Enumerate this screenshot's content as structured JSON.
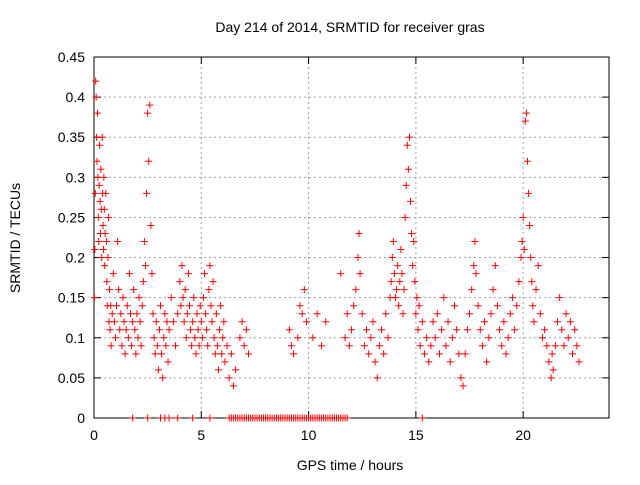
{
  "chart_data": {
    "type": "scatter",
    "title": "Day 214 of 2014, SRMTID for receiver gras",
    "xlabel": "GPS time / hours",
    "ylabel": "SRMTID / TECUs",
    "xlim": [
      0,
      24
    ],
    "ylim": [
      0,
      0.45
    ],
    "xticks": [
      0,
      5,
      10,
      15,
      20
    ],
    "yticks": [
      0,
      0.05,
      0.1,
      0.15,
      0.2,
      0.25,
      0.3,
      0.35,
      0.4,
      0.45
    ],
    "ytick_labels": [
      "0",
      "0.05",
      "0.1",
      "0.15",
      "0.2",
      "0.25",
      "0.3",
      "0.35",
      "0.4",
      "0.45"
    ],
    "grid": true,
    "marker": "+",
    "series": [
      {
        "name": "SRMTID",
        "color": "#ff0000",
        "points": [
          [
            0.02,
            0.15
          ],
          [
            0.04,
            0.21
          ],
          [
            0.06,
            0.28
          ],
          [
            0.08,
            0.42
          ],
          [
            0.1,
            0.4
          ],
          [
            0.12,
            0.35
          ],
          [
            0.14,
            0.32
          ],
          [
            0.16,
            0.38
          ],
          [
            0.18,
            0.3
          ],
          [
            0.2,
            0.25
          ],
          [
            0.22,
            0.22
          ],
          [
            0.24,
            0.29
          ],
          [
            0.26,
            0.34
          ],
          [
            0.28,
            0.27
          ],
          [
            0.3,
            0.23
          ],
          [
            0.32,
            0.31
          ],
          [
            0.34,
            0.26
          ],
          [
            0.36,
            0.2
          ],
          [
            0.38,
            0.35
          ],
          [
            0.4,
            0.28
          ],
          [
            0.42,
            0.24
          ],
          [
            0.44,
            0.21
          ],
          [
            0.46,
            0.3
          ],
          [
            0.48,
            0.26
          ],
          [
            0.5,
            0.19
          ],
          [
            0.52,
            0.23
          ],
          [
            0.55,
            0.28
          ],
          [
            0.58,
            0.22
          ],
          [
            0.6,
            0.17
          ],
          [
            0.62,
            0.14
          ],
          [
            0.65,
            0.2
          ],
          [
            0.68,
            0.25
          ],
          [
            0.7,
            0.12
          ],
          [
            0.72,
            0.16
          ],
          [
            0.75,
            0.11
          ],
          [
            0.78,
            0.14
          ],
          [
            0.8,
            0.09
          ],
          [
            0.85,
            0.13
          ],
          [
            0.9,
            0.18
          ],
          [
            0.95,
            0.12
          ],
          [
            1.0,
            0.1
          ],
          [
            1.05,
            0.14
          ],
          [
            1.1,
            0.22
          ],
          [
            1.15,
            0.16
          ],
          [
            1.2,
            0.11
          ],
          [
            1.25,
            0.13
          ],
          [
            1.3,
            0.09
          ],
          [
            1.35,
            0.15
          ],
          [
            1.4,
            0.12
          ],
          [
            1.45,
            0.08
          ],
          [
            1.5,
            0.11
          ],
          [
            1.55,
            0.14
          ],
          [
            1.6,
            0.1
          ],
          [
            1.65,
            0.18
          ],
          [
            1.7,
            0.13
          ],
          [
            1.75,
            0.09
          ],
          [
            1.8,
            0.12
          ],
          [
            1.85,
            0.16
          ],
          [
            1.9,
            0.11
          ],
          [
            1.95,
            0.08
          ],
          [
            2.0,
            0.13
          ],
          [
            2.05,
            0.1
          ],
          [
            2.1,
            0.15
          ],
          [
            2.15,
            0.12
          ],
          [
            2.2,
            0.09
          ],
          [
            2.25,
            0.14
          ],
          [
            2.3,
            0.17
          ],
          [
            2.35,
            0.22
          ],
          [
            2.4,
            0.19
          ],
          [
            2.45,
            0.28
          ],
          [
            2.5,
            0.38
          ],
          [
            2.55,
            0.32
          ],
          [
            2.6,
            0.39
          ],
          [
            2.65,
            0.24
          ],
          [
            2.7,
            0.18
          ],
          [
            2.75,
            0.13
          ],
          [
            2.8,
            0.1
          ],
          [
            2.85,
            0.08
          ],
          [
            2.9,
            0.12
          ],
          [
            2.95,
            0.09
          ],
          [
            3.0,
            0.06
          ],
          [
            3.05,
            0.11
          ],
          [
            3.1,
            0.14
          ],
          [
            3.15,
            0.08
          ],
          [
            3.2,
            0.05
          ],
          [
            3.25,
            0.1
          ],
          [
            3.3,
            0.13
          ],
          [
            3.35,
            0.09
          ],
          [
            3.4,
            0.12
          ],
          [
            3.45,
            0.07
          ],
          [
            3.5,
            0.11
          ],
          [
            3.6,
            0.15
          ],
          [
            3.7,
            0.12
          ],
          [
            3.8,
            0.09
          ],
          [
            3.9,
            0.13
          ],
          [
            4.0,
            0.17
          ],
          [
            4.05,
            0.14
          ],
          [
            4.1,
            0.19
          ],
          [
            4.15,
            0.15
          ],
          [
            4.2,
            0.12
          ],
          [
            4.25,
            0.16
          ],
          [
            4.3,
            0.1
          ],
          [
            4.35,
            0.13
          ],
          [
            4.4,
            0.18
          ],
          [
            4.45,
            0.14
          ],
          [
            4.5,
            0.11
          ],
          [
            4.55,
            0.09
          ],
          [
            4.6,
            0.12
          ],
          [
            4.65,
            0.15
          ],
          [
            4.7,
            0.1
          ],
          [
            4.75,
            0.08
          ],
          [
            4.8,
            0.13
          ],
          [
            4.85,
            0.11
          ],
          [
            4.9,
            0.09
          ],
          [
            4.95,
            0.14
          ],
          [
            5.0,
            0.12
          ],
          [
            5.05,
            0.1
          ],
          [
            5.1,
            0.15
          ],
          [
            5.15,
            0.18
          ],
          [
            5.2,
            0.13
          ],
          [
            5.25,
            0.11
          ],
          [
            5.3,
            0.09
          ],
          [
            5.35,
            0.16
          ],
          [
            5.4,
            0.19
          ],
          [
            5.45,
            0.14
          ],
          [
            5.5,
            0.12
          ],
          [
            5.55,
            0.17
          ],
          [
            5.6,
            0.1
          ],
          [
            5.65,
            0.08
          ],
          [
            5.7,
            0.13
          ],
          [
            5.75,
            0.09
          ],
          [
            5.8,
            0.06
          ],
          [
            5.85,
            0.11
          ],
          [
            5.9,
            0.14
          ],
          [
            5.95,
            0.08
          ],
          [
            6.0,
            0.1
          ],
          [
            6.05,
            0.12
          ],
          [
            6.1,
            0.07
          ],
          [
            6.2,
            0.09
          ],
          [
            6.3,
            0.05
          ],
          [
            6.4,
            0.08
          ],
          [
            6.5,
            0.04
          ],
          [
            6.6,
            0.06
          ],
          [
            6.8,
            0.1
          ],
          [
            6.9,
            0.12
          ],
          [
            7.0,
            0.09
          ],
          [
            7.1,
            0.11
          ],
          [
            7.2,
            0.08
          ],
          [
            9.1,
            0.11
          ],
          [
            9.2,
            0.09
          ],
          [
            9.3,
            0.08
          ],
          [
            9.5,
            0.1
          ],
          [
            9.6,
            0.14
          ],
          [
            9.7,
            0.13
          ],
          [
            9.8,
            0.16
          ],
          [
            9.9,
            0.12
          ],
          [
            10.2,
            0.1
          ],
          [
            10.4,
            0.13
          ],
          [
            10.6,
            0.09
          ],
          [
            10.8,
            0.12
          ],
          [
            11.5,
            0.18
          ],
          [
            11.7,
            0.1
          ],
          [
            11.8,
            0.13
          ],
          [
            11.9,
            0.09
          ],
          [
            12.0,
            0.11
          ],
          [
            12.1,
            0.14
          ],
          [
            12.2,
            0.16
          ],
          [
            12.3,
            0.2
          ],
          [
            12.35,
            0.23
          ],
          [
            12.4,
            0.18
          ],
          [
            12.5,
            0.13
          ],
          [
            12.6,
            0.09
          ],
          [
            12.7,
            0.11
          ],
          [
            12.8,
            0.08
          ],
          [
            12.9,
            0.1
          ],
          [
            13.0,
            0.12
          ],
          [
            13.1,
            0.07
          ],
          [
            13.2,
            0.05
          ],
          [
            13.3,
            0.09
          ],
          [
            13.4,
            0.11
          ],
          [
            13.5,
            0.08
          ],
          [
            13.6,
            0.13
          ],
          [
            13.7,
            0.1
          ],
          [
            13.8,
            0.15
          ],
          [
            13.85,
            0.17
          ],
          [
            13.9,
            0.2
          ],
          [
            13.95,
            0.22
          ],
          [
            14.0,
            0.18
          ],
          [
            14.05,
            0.15
          ],
          [
            14.1,
            0.16
          ],
          [
            14.15,
            0.19
          ],
          [
            14.2,
            0.14
          ],
          [
            14.25,
            0.17
          ],
          [
            14.3,
            0.21
          ],
          [
            14.35,
            0.18
          ],
          [
            14.4,
            0.13
          ],
          [
            14.45,
            0.16
          ],
          [
            14.5,
            0.25
          ],
          [
            14.55,
            0.29
          ],
          [
            14.6,
            0.34
          ],
          [
            14.65,
            0.31
          ],
          [
            14.7,
            0.35
          ],
          [
            14.75,
            0.27
          ],
          [
            14.8,
            0.23
          ],
          [
            14.85,
            0.19
          ],
          [
            14.9,
            0.22
          ],
          [
            14.95,
            0.17
          ],
          [
            15.0,
            0.13
          ],
          [
            15.05,
            0.15
          ],
          [
            15.1,
            0.11
          ],
          [
            15.15,
            0.14
          ],
          [
            15.2,
            0.09
          ],
          [
            15.3,
            0.12
          ],
          [
            15.4,
            0.08
          ],
          [
            15.5,
            0.1
          ],
          [
            15.6,
            0.07
          ],
          [
            15.7,
            0.09
          ],
          [
            15.8,
            0.12
          ],
          [
            15.9,
            0.1
          ],
          [
            16.0,
            0.13
          ],
          [
            16.1,
            0.08
          ],
          [
            16.2,
            0.11
          ],
          [
            16.3,
            0.15
          ],
          [
            16.4,
            0.09
          ],
          [
            16.5,
            0.12
          ],
          [
            16.6,
            0.07
          ],
          [
            16.7,
            0.1
          ],
          [
            16.8,
            0.14
          ],
          [
            16.9,
            0.11
          ],
          [
            17.0,
            0.08
          ],
          [
            17.1,
            0.05
          ],
          [
            17.2,
            0.04
          ],
          [
            17.3,
            0.08
          ],
          [
            17.4,
            0.11
          ],
          [
            17.5,
            0.13
          ],
          [
            17.6,
            0.16
          ],
          [
            17.7,
            0.19
          ],
          [
            17.75,
            0.22
          ],
          [
            17.8,
            0.18
          ],
          [
            17.9,
            0.14
          ],
          [
            18.0,
            0.11
          ],
          [
            18.1,
            0.09
          ],
          [
            18.2,
            0.12
          ],
          [
            18.3,
            0.07
          ],
          [
            18.4,
            0.1
          ],
          [
            18.5,
            0.13
          ],
          [
            18.6,
            0.16
          ],
          [
            18.7,
            0.19
          ],
          [
            18.8,
            0.14
          ],
          [
            18.9,
            0.11
          ],
          [
            19.0,
            0.09
          ],
          [
            19.1,
            0.12
          ],
          [
            19.2,
            0.08
          ],
          [
            19.3,
            0.1
          ],
          [
            19.4,
            0.13
          ],
          [
            19.5,
            0.15
          ],
          [
            19.6,
            0.11
          ],
          [
            19.7,
            0.14
          ],
          [
            19.8,
            0.17
          ],
          [
            19.9,
            0.2
          ],
          [
            19.95,
            0.22
          ],
          [
            20.0,
            0.25
          ],
          [
            20.05,
            0.21
          ],
          [
            20.1,
            0.37
          ],
          [
            20.15,
            0.38
          ],
          [
            20.2,
            0.32
          ],
          [
            20.25,
            0.28
          ],
          [
            20.3,
            0.24
          ],
          [
            20.35,
            0.2
          ],
          [
            20.4,
            0.17
          ],
          [
            20.45,
            0.14
          ],
          [
            20.5,
            0.12
          ],
          [
            20.6,
            0.16
          ],
          [
            20.7,
            0.19
          ],
          [
            20.8,
            0.13
          ],
          [
            20.9,
            0.1
          ],
          [
            21.0,
            0.11
          ],
          [
            21.1,
            0.09
          ],
          [
            21.2,
            0.07
          ],
          [
            21.3,
            0.05
          ],
          [
            21.35,
            0.08
          ],
          [
            21.4,
            0.06
          ],
          [
            21.5,
            0.09
          ],
          [
            21.6,
            0.12
          ],
          [
            21.7,
            0.15
          ],
          [
            21.8,
            0.11
          ],
          [
            21.9,
            0.09
          ],
          [
            22.0,
            0.13
          ],
          [
            22.1,
            0.1
          ],
          [
            22.2,
            0.12
          ],
          [
            22.3,
            0.08
          ],
          [
            22.4,
            0.11
          ],
          [
            22.5,
            0.09
          ],
          [
            22.6,
            0.07
          ]
        ],
        "zeros": [
          1.8,
          2.5,
          3.1,
          3.3,
          3.5,
          3.9,
          4.6,
          5.4,
          6.3,
          6.4,
          6.5,
          6.6,
          6.7,
          6.8,
          6.9,
          7.0,
          7.1,
          7.2,
          7.3,
          7.4,
          7.5,
          7.6,
          7.7,
          7.8,
          7.9,
          8.0,
          8.1,
          8.2,
          8.3,
          8.4,
          8.5,
          8.6,
          8.7,
          8.8,
          8.9,
          9.0,
          9.1,
          9.2,
          9.3,
          9.4,
          9.5,
          9.6,
          9.7,
          9.8,
          9.9,
          10.0,
          10.1,
          10.2,
          10.3,
          10.4,
          10.5,
          10.6,
          10.7,
          10.8,
          10.9,
          11.0,
          11.1,
          11.2,
          11.3,
          11.4,
          11.5,
          11.6,
          11.7,
          11.8,
          15.3
        ]
      }
    ]
  }
}
